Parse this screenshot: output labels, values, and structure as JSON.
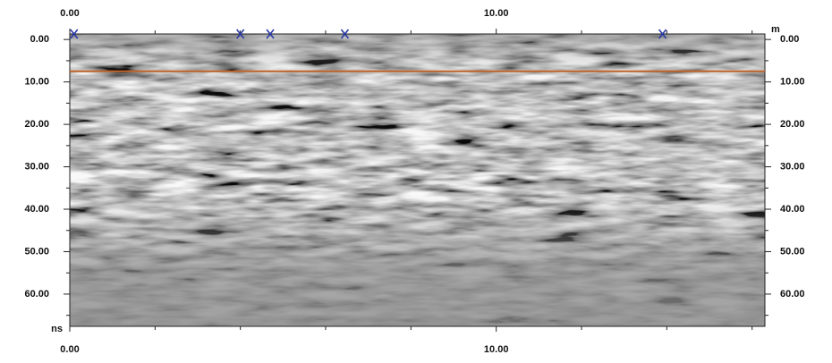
{
  "chart_data": {
    "type": "radargram",
    "x_unit": "m",
    "y_unit": "ns",
    "xlim": [
      0,
      16.3
    ],
    "ylim": [
      -1.3,
      67.6
    ],
    "xticks": [
      {
        "value": 0,
        "label": "0.00"
      },
      {
        "value": 10,
        "label": "10.00"
      }
    ],
    "xminorticks": [
      2,
      4,
      6,
      8,
      12,
      14,
      16
    ],
    "yticks": [
      {
        "value": 0,
        "label": "0.00"
      },
      {
        "value": 10,
        "label": "10.00"
      },
      {
        "value": 20,
        "label": "20.00"
      },
      {
        "value": 30,
        "label": "30.00"
      },
      {
        "value": 40,
        "label": "40.00"
      },
      {
        "value": 50,
        "label": "50.00"
      },
      {
        "value": 60,
        "label": "60.00"
      }
    ],
    "yminorticks": [
      5,
      15,
      25,
      35,
      45,
      55,
      65
    ],
    "horizontal_line": {
      "value": 7.5,
      "color": "#c0622a"
    },
    "event_markers_x": [
      0.1,
      4.0,
      4.7,
      6.45,
      13.9
    ],
    "marker_color": "#2a3aa8"
  }
}
